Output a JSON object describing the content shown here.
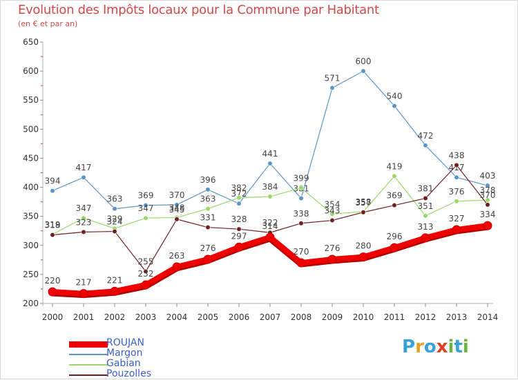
{
  "title": "Evolution des Impôts locaux pour la Commune par Habitant",
  "subtitle": "(en € et par an)",
  "logo": {
    "text": "Proxiti",
    "letter_colors": [
      "#3aa0d8",
      "#e8a020",
      "#3aa0d8",
      "#e04020",
      "#70b040",
      "#3aa0d8",
      "#70b040"
    ]
  },
  "chart_data": {
    "type": "line",
    "title": "Evolution des Impôts locaux pour la Commune par Habitant",
    "subtitle": "(en € et par an)",
    "x": [
      "2000",
      "2001",
      "2002",
      "2003",
      "2004",
      "2005",
      "2006",
      "2007",
      "2008",
      "2009",
      "2010",
      "2011",
      "2012",
      "2013",
      "2014"
    ],
    "ylim": [
      200,
      650
    ],
    "yticks": [
      200,
      250,
      300,
      350,
      400,
      450,
      500,
      550,
      600,
      650
    ],
    "grid": false,
    "legend_position": "bottom-left",
    "series": [
      {
        "name": "ROUJAN",
        "color": "#ee0000",
        "values": [
          220,
          217,
          221,
          232,
          263,
          276,
          297,
          314,
          270,
          276,
          280,
          296,
          313,
          327,
          334
        ]
      },
      {
        "name": "Margon",
        "color": "#5b95c8",
        "values": [
          394,
          417,
          363,
          369,
          370,
          396,
          372,
          441,
          381,
          571,
          600,
          540,
          472,
          417,
          403
        ]
      },
      {
        "name": "Gabian",
        "color": "#9ad86a",
        "values": [
          319,
          347,
          329,
          347,
          348,
          363,
          382,
          384,
          399,
          354,
          358,
          419,
          351,
          376,
          378
        ]
      },
      {
        "name": "Pouzolles",
        "color": "#6e2020",
        "values": [
          318,
          323,
          324,
          255,
          345,
          331,
          328,
          322,
          338,
          343,
          357,
          369,
          381,
          438,
          370
        ]
      }
    ]
  }
}
